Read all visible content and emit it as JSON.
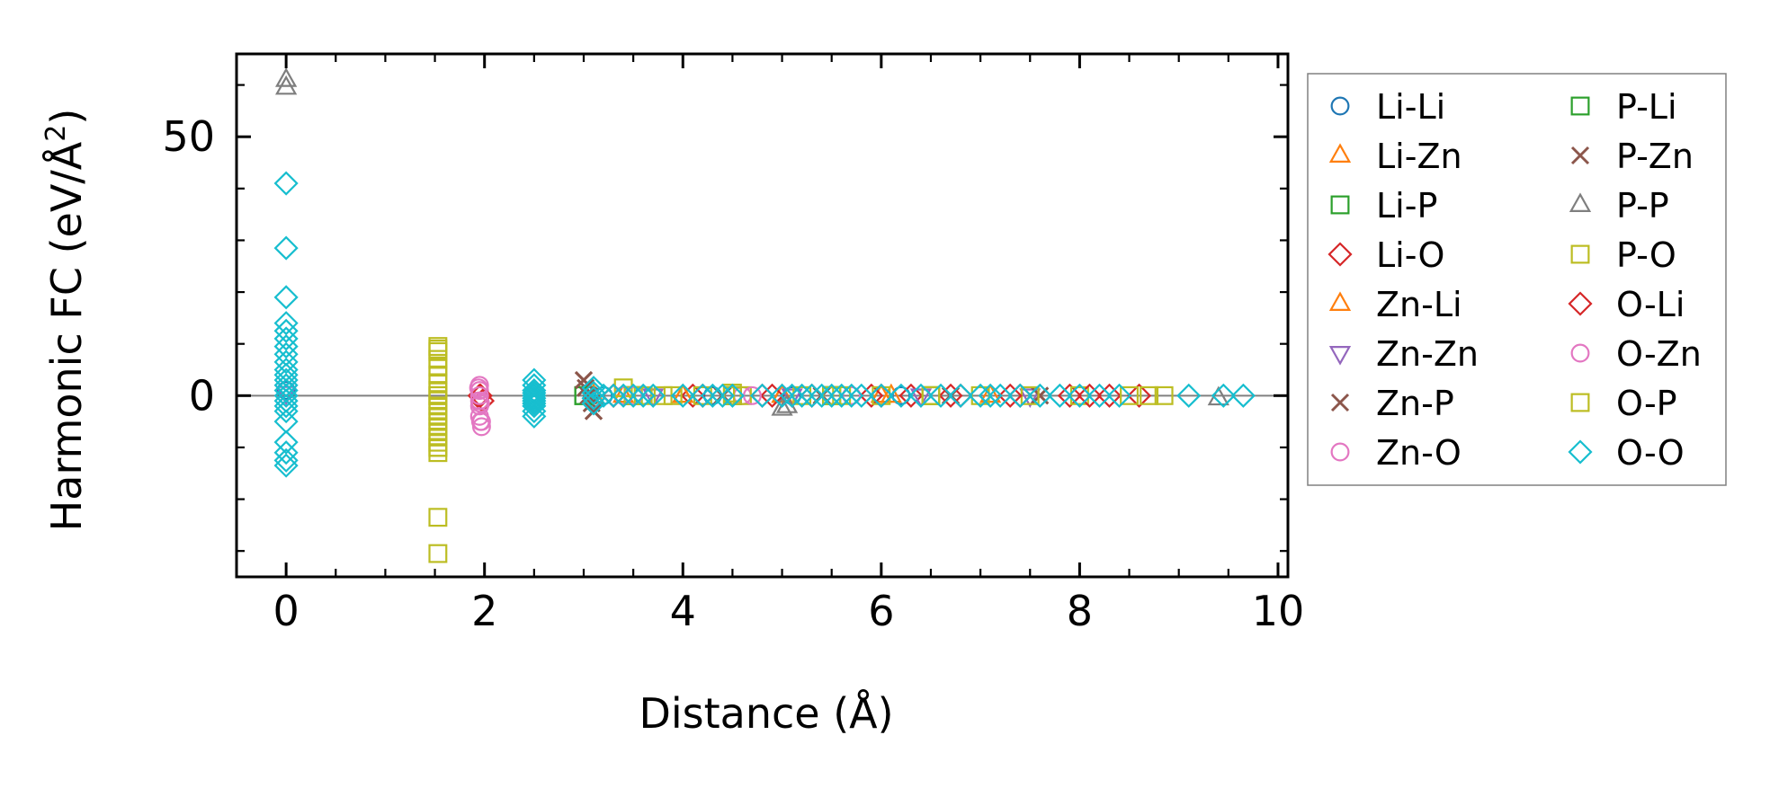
{
  "chart_data": {
    "type": "scatter",
    "xlabel": "Distance (Å)",
    "ylabel_main": "Harmonic FC (eV/Å",
    "ylabel_sup": "2",
    "ylabel_end": ")",
    "xlim": [
      -0.5,
      10.1
    ],
    "ylim": [
      -35,
      66
    ],
    "xticks": [
      0,
      2,
      4,
      6,
      8,
      10
    ],
    "xtick_labels": [
      "0",
      "2",
      "4",
      "6",
      "8",
      "10"
    ],
    "yticks": [
      0,
      50
    ],
    "ytick_labels": [
      "0",
      "50"
    ],
    "x_minor_step": 0.5,
    "y_minor_step": 10,
    "zero_line": true,
    "grid": false,
    "legend_position": "outside-right",
    "legend_columns": 2,
    "series": [
      {
        "name": "Li-Li",
        "marker": "circle",
        "color": "#1f77b4",
        "x": [
          0.0,
          3.2,
          3.6,
          4.3,
          5.1,
          6.2
        ],
        "y": [
          1.0,
          0.0,
          0.0,
          0.0,
          0.0,
          0.0
        ]
      },
      {
        "name": "Li-Zn",
        "marker": "triangle-up",
        "color": "#ff7f0e",
        "x": [
          3.1,
          3.4,
          4.0,
          5.0,
          6.0,
          7.1
        ],
        "y": [
          0.0,
          0.0,
          0.0,
          0.0,
          0.0,
          0.0
        ]
      },
      {
        "name": "Li-P",
        "marker": "square",
        "color": "#2ca02c",
        "x": [
          3.0,
          3.5,
          4.5,
          5.5,
          6.5
        ],
        "y": [
          0.0,
          0.0,
          0.0,
          0.0,
          0.0
        ]
      },
      {
        "name": "Li-O",
        "marker": "diamond",
        "color": "#d62728",
        "x": [
          1.95,
          1.98,
          3.3,
          4.1,
          4.8,
          5.3,
          5.9,
          6.3,
          6.8,
          7.4,
          7.9,
          8.3,
          8.6
        ],
        "y": [
          0.0,
          -1.0,
          0.0,
          0.0,
          0.0,
          0.0,
          0.0,
          0.0,
          0.0,
          0.0,
          0.0,
          0.0,
          0.0
        ]
      },
      {
        "name": "Zn-Li",
        "marker": "triangle-up",
        "color": "#ff7f0e",
        "x": [
          3.1,
          4.0,
          5.0,
          6.1
        ],
        "y": [
          0.0,
          0.0,
          0.0,
          0.0
        ]
      },
      {
        "name": "Zn-Zn",
        "marker": "triangle-down",
        "color": "#9467bd",
        "x": [
          0.0,
          3.7,
          5.1,
          6.4,
          7.5
        ],
        "y": [
          0.5,
          0.0,
          0.0,
          0.0,
          0.0
        ]
      },
      {
        "name": "Zn-P",
        "marker": "x",
        "color": "#8c564b",
        "x": [
          3.0,
          3.02,
          3.05,
          3.08,
          3.1,
          4.4,
          5.4,
          6.7,
          7.6
        ],
        "y": [
          3.0,
          1.5,
          0.0,
          -1.5,
          -3.0,
          0.0,
          0.0,
          0.0,
          0.0
        ]
      },
      {
        "name": "Zn-O",
        "marker": "circle",
        "color": "#e377c2",
        "x": [
          1.95,
          1.95,
          1.95,
          1.95,
          1.95,
          1.95,
          1.96,
          1.97,
          3.4,
          4.6,
          5.7
        ],
        "y": [
          2.0,
          1.0,
          0.0,
          -1.0,
          -2.0,
          -4.0,
          -5.0,
          -6.0,
          0.0,
          0.0,
          0.0
        ]
      },
      {
        "name": "P-Li",
        "marker": "square",
        "color": "#2ca02c",
        "x": [
          3.0,
          3.5,
          4.5,
          5.5
        ],
        "y": [
          0.0,
          0.0,
          0.0,
          0.0
        ]
      },
      {
        "name": "P-Zn",
        "marker": "x",
        "color": "#8c564b",
        "x": [
          3.0,
          3.05,
          3.1,
          4.4,
          5.4,
          6.7
        ],
        "y": [
          3.0,
          0.0,
          -3.0,
          0.0,
          0.0,
          0.0
        ]
      },
      {
        "name": "P-P",
        "marker": "triangle-up",
        "color": "#7f7f7f",
        "x": [
          0.0,
          0.0,
          5.0,
          5.05,
          9.4
        ],
        "y": [
          61.0,
          59.5,
          -2.5,
          -2.0,
          -0.5
        ]
      },
      {
        "name": "P-O",
        "marker": "square",
        "color": "#bcbd22",
        "x": [
          1.53,
          1.53,
          1.53,
          1.53,
          1.53,
          1.53,
          1.53,
          1.53,
          1.53,
          1.53,
          1.53,
          1.53,
          1.53,
          1.53,
          1.53,
          1.53,
          1.53,
          1.53,
          1.53,
          1.53,
          1.53,
          3.4,
          3.5,
          3.8,
          3.9,
          4.2,
          4.5,
          4.6,
          5.2,
          5.6,
          6.0,
          6.5,
          7.0,
          7.5,
          8.0,
          8.5,
          8.7
        ],
        "y": [
          9.5,
          8.5,
          7.0,
          5.5,
          4.0,
          2.5,
          1.0,
          0.0,
          -1.0,
          -2.0,
          -3.0,
          -4.0,
          -5.0,
          -6.0,
          -7.0,
          -8.0,
          -9.0,
          -10.0,
          -11.0,
          -23.5,
          -30.5,
          1.5,
          0.0,
          0.0,
          0.0,
          0.0,
          0.5,
          0.0,
          0.0,
          0.0,
          0.0,
          0.0,
          0.0,
          0.0,
          0.0,
          0.0,
          0.0
        ]
      },
      {
        "name": "O-Li",
        "marker": "diamond",
        "color": "#d62728",
        "x": [
          1.96,
          3.3,
          4.2,
          4.9,
          6.0,
          6.7,
          7.3,
          8.1
        ],
        "y": [
          0.0,
          0.0,
          0.0,
          0.0,
          0.0,
          0.0,
          0.0,
          0.0
        ]
      },
      {
        "name": "O-Zn",
        "marker": "circle",
        "color": "#e377c2",
        "x": [
          1.94,
          1.95,
          1.96,
          1.97,
          3.5,
          4.7
        ],
        "y": [
          1.5,
          0.0,
          -1.5,
          -5.0,
          0.0,
          0.0
        ]
      },
      {
        "name": "O-P",
        "marker": "square",
        "color": "#bcbd22",
        "x": [
          1.53,
          1.53,
          1.53,
          3.6,
          4.5,
          5.5,
          6.5,
          8.85
        ],
        "y": [
          9.0,
          0.0,
          -10.0,
          0.0,
          0.0,
          0.0,
          0.0,
          0.0
        ]
      },
      {
        "name": "O-O",
        "marker": "diamond",
        "color": "#17becf",
        "x": [
          0.0,
          0.0,
          0.0,
          0.0,
          0.0,
          0.0,
          0.0,
          0.0,
          0.0,
          0.0,
          0.0,
          0.0,
          0.0,
          0.0,
          0.0,
          0.0,
          0.0,
          0.0,
          0.0,
          0.0,
          0.0,
          0.0,
          0.0,
          2.5,
          2.5,
          2.5,
          2.5,
          2.5,
          2.5,
          2.5,
          2.5,
          2.5,
          2.5,
          2.5,
          3.1,
          3.1,
          3.1,
          3.1,
          3.2,
          3.3,
          3.4,
          3.5,
          3.6,
          3.7,
          4.0,
          4.2,
          4.3,
          4.4,
          4.5,
          4.8,
          5.0,
          5.1,
          5.2,
          5.3,
          5.4,
          5.5,
          5.6,
          5.7,
          5.8,
          6.0,
          6.2,
          6.4,
          6.6,
          6.8,
          7.0,
          7.1,
          7.2,
          7.4,
          7.6,
          7.8,
          8.0,
          8.2,
          8.4,
          9.1,
          9.45,
          9.65
        ],
        "y": [
          41.0,
          28.5,
          19.0,
          14.0,
          12.5,
          11.0,
          9.5,
          8.0,
          6.5,
          5.0,
          4.0,
          3.0,
          2.0,
          1.0,
          0.0,
          -1.0,
          -2.0,
          -3.0,
          -5.0,
          -9.0,
          -11.0,
          -12.5,
          -13.5,
          3.0,
          2.0,
          1.0,
          0.5,
          0.0,
          -0.5,
          -1.0,
          -1.5,
          -2.0,
          -3.0,
          -4.0,
          1.5,
          0.5,
          -0.5,
          -1.5,
          0.0,
          0.0,
          0.0,
          0.0,
          0.0,
          0.0,
          0.0,
          0.0,
          0.0,
          0.0,
          0.0,
          0.0,
          0.0,
          0.0,
          0.0,
          0.0,
          0.0,
          0.0,
          0.0,
          0.0,
          0.0,
          0.0,
          0.0,
          0.0,
          0.0,
          0.0,
          0.0,
          0.0,
          0.0,
          0.0,
          0.0,
          0.0,
          0.0,
          0.0,
          0.0,
          0.0,
          0.0,
          0.0
        ]
      }
    ]
  }
}
